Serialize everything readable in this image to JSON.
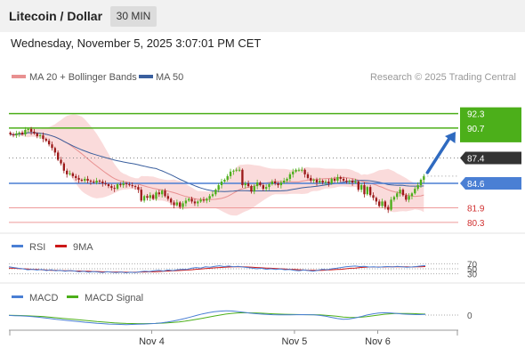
{
  "header": {
    "title": "Litecoin / Dollar",
    "interval": "30 MIN",
    "datetime": "Wednesday, November 5, 2025 3:07:01 PM CET"
  },
  "colors": {
    "support": "#4a7fd4",
    "resistance": "#4caf1a",
    "ma20": "#e89090",
    "ma50": "#3a5f9e",
    "bollinger": "#f8cfcf",
    "candle_up": "#4caf1a",
    "candle_down": "#9c1a1a",
    "current": "#333333",
    "red_level": "#d03030",
    "arrow": "#2f6ac0",
    "rsi": "#4a7fd4",
    "rsi_ma": "#cc1818",
    "macd": "#4a7fd4",
    "macd_signal": "#4caf1a"
  },
  "chart_data": [
    {
      "type": "candlestick",
      "legend": {
        "ma20": "MA 20 + Bollinger Bands",
        "ma50": "MA 50"
      },
      "copyright": "Research © 2025 Trading Central",
      "ylim": [
        79.5,
        95.5
      ],
      "x_ticks": [
        {
          "label": "Nov 4",
          "x": 48
        },
        {
          "label": "Nov 5",
          "x": 96
        },
        {
          "label": "Nov 6",
          "x": 124
        }
      ],
      "xlim": [
        0,
        140
      ],
      "price_levels": [
        {
          "value": 92.3,
          "label": "92.3",
          "kind": "resistance"
        },
        {
          "value": 90.7,
          "label": "90.7",
          "kind": "resistance"
        },
        {
          "value": 87.4,
          "label": "87.4",
          "kind": "current"
        },
        {
          "value": 84.6,
          "label": "84.6",
          "kind": "support"
        },
        {
          "value": 81.9,
          "label": "81.9",
          "kind": "red"
        },
        {
          "value": 80.3,
          "label": "80.3",
          "kind": "red"
        }
      ],
      "close": [
        90.0,
        89.9,
        90.1,
        90.2,
        90.0,
        90.5,
        90.6,
        90.3,
        90.1,
        89.8,
        89.9,
        89.5,
        89.3,
        88.9,
        88.5,
        88.0,
        87.2,
        86.8,
        86.0,
        85.6,
        85.7,
        85.4,
        85.2,
        85.0,
        84.9,
        85.1,
        84.9,
        84.8,
        84.7,
        84.9,
        84.8,
        84.6,
        84.5,
        84.3,
        84.1,
        84.0,
        84.5,
        84.4,
        84.6,
        84.5,
        84.4,
        84.3,
        84.2,
        83.9,
        82.7,
        83.2,
        83.0,
        83.3,
        82.9,
        83.6,
        83.4,
        83.8,
        83.2,
        82.9,
        82.5,
        82.2,
        82.5,
        82.0,
        82.4,
        82.7,
        82.9,
        82.6,
        82.4,
        82.6,
        82.8,
        82.7,
        82.9,
        83.2,
        83.4,
        83.9,
        84.4,
        84.8,
        85.0,
        85.4,
        85.9,
        86.0,
        86.1,
        86.1,
        84.4,
        84.6,
        84.3,
        83.7,
        84.3,
        84.7,
        84.4,
        84.0,
        84.2,
        84.5,
        84.8,
        84.6,
        84.4,
        84.7,
        84.9,
        85.1,
        85.6,
        85.9,
        86.1,
        86.1,
        86.1,
        85.6,
        85.2,
        84.9,
        85.0,
        84.7,
        84.9,
        84.7,
        84.8,
        84.6,
        85.1,
        84.9,
        85.3,
        85.1,
        84.9,
        84.8,
        84.9,
        84.7,
        84.8,
        83.9,
        84.4,
        83.4,
        84.2,
        83.3,
        83.0,
        82.6,
        82.1,
        82.6,
        82.0,
        81.7,
        82.8,
        83.1,
        83.5,
        83.9,
        83.3,
        82.8,
        83.2,
        83.5,
        84.0,
        84.4,
        85.0,
        85.4
      ]
    },
    {
      "type": "line",
      "legend": {
        "rsi": "RSI",
        "ma": "9MA"
      },
      "ylim": [
        0,
        100
      ],
      "levels": [
        70,
        50,
        30
      ],
      "series": [
        {
          "name": "RSI",
          "values": [
            58,
            55,
            52,
            50,
            46,
            48,
            45,
            47,
            43,
            46,
            42,
            44,
            40,
            43,
            41,
            38,
            40,
            36,
            39,
            37,
            35,
            38,
            36,
            35,
            37,
            34,
            36,
            35,
            38,
            40,
            39,
            42,
            44,
            41,
            45,
            43,
            46,
            48,
            47,
            52,
            55,
            53,
            58,
            56,
            60,
            62,
            59,
            61,
            58,
            60,
            57,
            55,
            53,
            50,
            52,
            48,
            50,
            47,
            49,
            46,
            47,
            44,
            42,
            45,
            43,
            40,
            44,
            48,
            46,
            50,
            52,
            55,
            58,
            60,
            61,
            59,
            60,
            57,
            58,
            56,
            58,
            59,
            57,
            60,
            58,
            56,
            57,
            59,
            61,
            63
          ]
        },
        {
          "name": "9MA",
          "values": [
            53,
            52,
            51,
            50,
            49,
            48,
            47,
            46,
            45,
            44,
            44,
            43,
            42,
            42,
            41,
            41,
            40,
            40,
            39,
            39,
            38,
            38,
            37,
            37,
            37,
            36,
            36,
            36,
            37,
            37,
            38,
            38,
            39,
            40,
            41,
            42,
            43,
            44,
            45,
            46,
            48,
            49,
            51,
            52,
            54,
            55,
            56,
            57,
            58,
            58,
            58,
            57,
            56,
            55,
            54,
            53,
            52,
            51,
            50,
            49,
            48,
            47,
            46,
            45,
            44,
            44,
            44,
            44,
            45,
            46,
            47,
            48,
            50,
            52,
            53,
            55,
            56,
            57,
            57,
            57,
            57,
            58,
            58,
            58,
            58,
            58,
            57,
            58,
            58,
            59
          ]
        }
      ]
    },
    {
      "type": "line",
      "legend": {
        "macd": "MACD",
        "signal": "MACD Signal"
      },
      "ylim": [
        -1.6,
        1.6
      ],
      "zero_label": "0",
      "series": [
        {
          "name": "MACD",
          "values": [
            -0.05,
            -0.08,
            -0.1,
            -0.15,
            -0.2,
            -0.28,
            -0.35,
            -0.45,
            -0.55,
            -0.62,
            -0.7,
            -0.78,
            -0.85,
            -0.92,
            -0.98,
            -1.05,
            -1.1,
            -1.15,
            -1.18,
            -1.2,
            -1.22,
            -1.2,
            -1.18,
            -1.15,
            -1.12,
            -1.08,
            -1.0,
            -0.9,
            -0.78,
            -0.62,
            -0.45,
            -0.25,
            -0.05,
            0.15,
            0.3,
            0.42,
            0.5,
            0.55,
            0.52,
            0.45,
            0.35,
            0.25,
            0.18,
            0.12,
            0.08,
            0.05,
            0.03,
            0.02,
            0.03,
            0.05,
            0.06,
            0.05,
            0.02,
            -0.05,
            -0.15,
            -0.3,
            -0.45,
            -0.55,
            -0.5,
            -0.38,
            -0.2,
            0.0,
            0.15,
            0.25,
            0.3,
            0.28,
            0.22,
            0.15,
            0.1,
            0.07,
            0.06,
            0.08
          ]
        },
        {
          "name": "MACD Signal",
          "values": [
            -0.02,
            -0.04,
            -0.06,
            -0.09,
            -0.12,
            -0.16,
            -0.21,
            -0.27,
            -0.34,
            -0.41,
            -0.48,
            -0.55,
            -0.62,
            -0.69,
            -0.76,
            -0.83,
            -0.89,
            -0.95,
            -1.0,
            -1.04,
            -1.07,
            -1.09,
            -1.1,
            -1.1,
            -1.09,
            -1.07,
            -1.04,
            -1.0,
            -0.95,
            -0.88,
            -0.79,
            -0.68,
            -0.55,
            -0.41,
            -0.27,
            -0.13,
            0.0,
            0.12,
            0.22,
            0.28,
            0.3,
            0.29,
            0.27,
            0.24,
            0.2,
            0.16,
            0.13,
            0.1,
            0.08,
            0.07,
            0.06,
            0.05,
            0.04,
            0.02,
            -0.02,
            -0.08,
            -0.16,
            -0.25,
            -0.3,
            -0.32,
            -0.28,
            -0.2,
            -0.1,
            0.0,
            0.1,
            0.16,
            0.2,
            0.21,
            0.2,
            0.18,
            0.15,
            0.12
          ]
        }
      ]
    }
  ]
}
